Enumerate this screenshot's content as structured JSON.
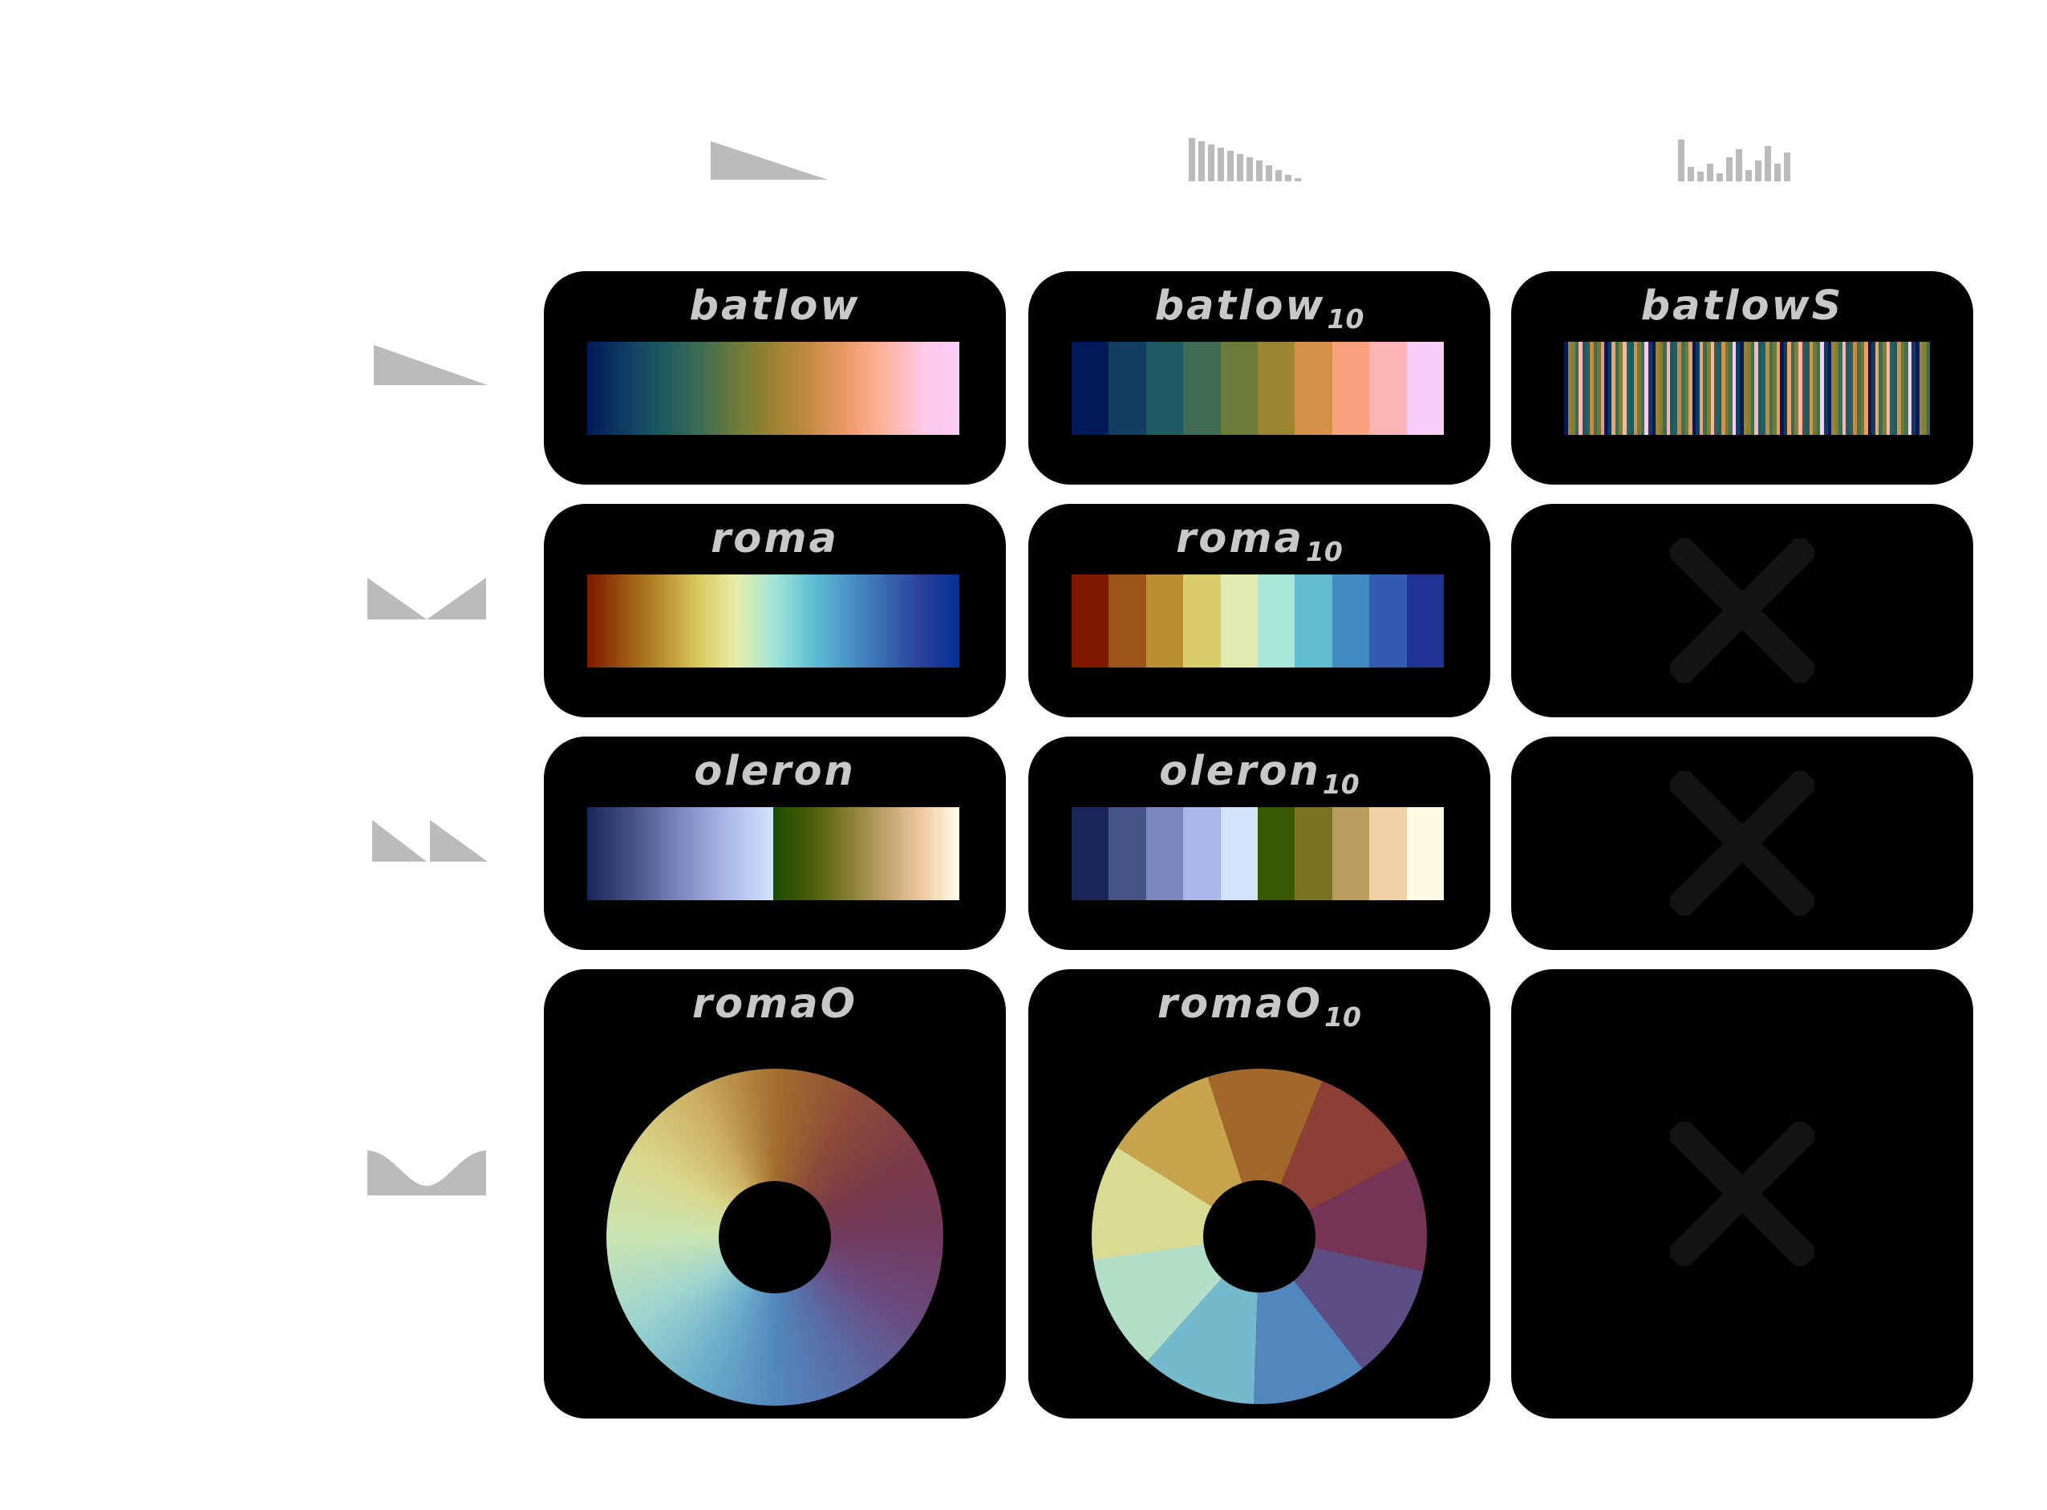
{
  "grid": {
    "rows": [
      {
        "icon": "sequential-profile-icon",
        "cells": [
          {
            "title": "batlow",
            "subscript": "",
            "kind": "continuous",
            "colors": [
              "#011959",
              "#0e3c61",
              "#1c5a62",
              "#3b6c54",
              "#6c7a3a",
              "#9a8231",
              "#c68b43",
              "#ee9a69",
              "#feb49e",
              "#fcc8e6",
              "#fbcdf6"
            ]
          },
          {
            "title": "batlow",
            "subscript": "10",
            "kind": "discrete",
            "colors": [
              "#011959",
              "#113e61",
              "#1e5a62",
              "#3f6d53",
              "#6b7b3a",
              "#9a8631",
              "#d39247",
              "#f9a07c",
              "#fdb4b4",
              "#f9cdf9"
            ]
          },
          {
            "title": "batlowS",
            "subscript": "",
            "kind": "categorical",
            "colors": [
              "#011959",
              "#fbcdf6",
              "#6c7a3a",
              "#c68b43",
              "#1c5a62",
              "#feb49e",
              "#3b6c54",
              "#9a8231",
              "#0e3c61",
              "#ee9a69",
              "#44704f",
              "#d39247",
              "#275f60",
              "#fdb4b4",
              "#817f35",
              "#e9a56c"
            ]
          }
        ]
      },
      {
        "icon": "diverging-profile-icon",
        "cells": [
          {
            "title": "roma",
            "subscript": "",
            "kind": "continuous",
            "colors": [
              "#7e1700",
              "#9b5412",
              "#b78e2d",
              "#dac95f",
              "#e8edaa",
              "#a3e6d6",
              "#60c1d4",
              "#4a94c6",
              "#3969b0",
              "#2a3f98",
              "#023198"
            ]
          },
          {
            "title": "roma",
            "subscript": "10",
            "kind": "discrete",
            "colors": [
              "#7e1900",
              "#9c5419",
              "#ba8f30",
              "#d9cd6b",
              "#e1eaaf",
              "#a9e6d5",
              "#5fbcd1",
              "#448ac2",
              "#335ab1",
              "#1e3393"
            ]
          },
          {
            "kind": "empty"
          }
        ]
      },
      {
        "icon": "multi-sequential-profile-icon",
        "cells": [
          {
            "title": "oleron",
            "subscript": "",
            "kind": "oleron",
            "colors_a": [
              "#1a2659",
              "#465384",
              "#7b88bf",
              "#aab8e8",
              "#d4e3fe"
            ],
            "colors_b": [
              "#1a4c00",
              "#4a5b09",
              "#857d30",
              "#c0a06c",
              "#f0c9a4",
              "#fdfde6"
            ]
          },
          {
            "title": "oleron",
            "subscript": "10",
            "kind": "discrete",
            "colors": [
              "#1a2659",
              "#465386",
              "#7b87bd",
              "#aab5e8",
              "#d3e1fb",
              "#385800",
              "#7a7221",
              "#ba9c5f",
              "#f2d1a6",
              "#fdfde6"
            ]
          },
          {
            "kind": "empty"
          }
        ]
      },
      {
        "icon": "cyclic-profile-icon",
        "cells": [
          {
            "title": "romaO",
            "subscript": "",
            "kind": "wheel",
            "colors": [
              "#a36e2e",
              "#8c4b39",
              "#7a3a48",
              "#713b5e",
              "#6a4a7e",
              "#5a6aa3",
              "#5288bd",
              "#6fb1cc",
              "#9fd5cf",
              "#c9e4b2",
              "#d9d88d",
              "#cdb063",
              "#a36e2e"
            ]
          },
          {
            "title": "romaO",
            "subscript": "10",
            "kind": "wheel-discrete",
            "colors": [
              "#a1672b",
              "#8c3f35",
              "#733455",
              "#5c4d85",
              "#5187bc",
              "#74b9cc",
              "#b3dfc9",
              "#d9db92",
              "#c6a34c",
              "#a1672b"
            ]
          },
          {
            "kind": "empty"
          }
        ]
      }
    ]
  },
  "columns": [
    {
      "icon": "continuous-gradient-icon"
    },
    {
      "icon": "discrete-bars-icon"
    },
    {
      "icon": "categorical-bars-icon"
    }
  ]
}
